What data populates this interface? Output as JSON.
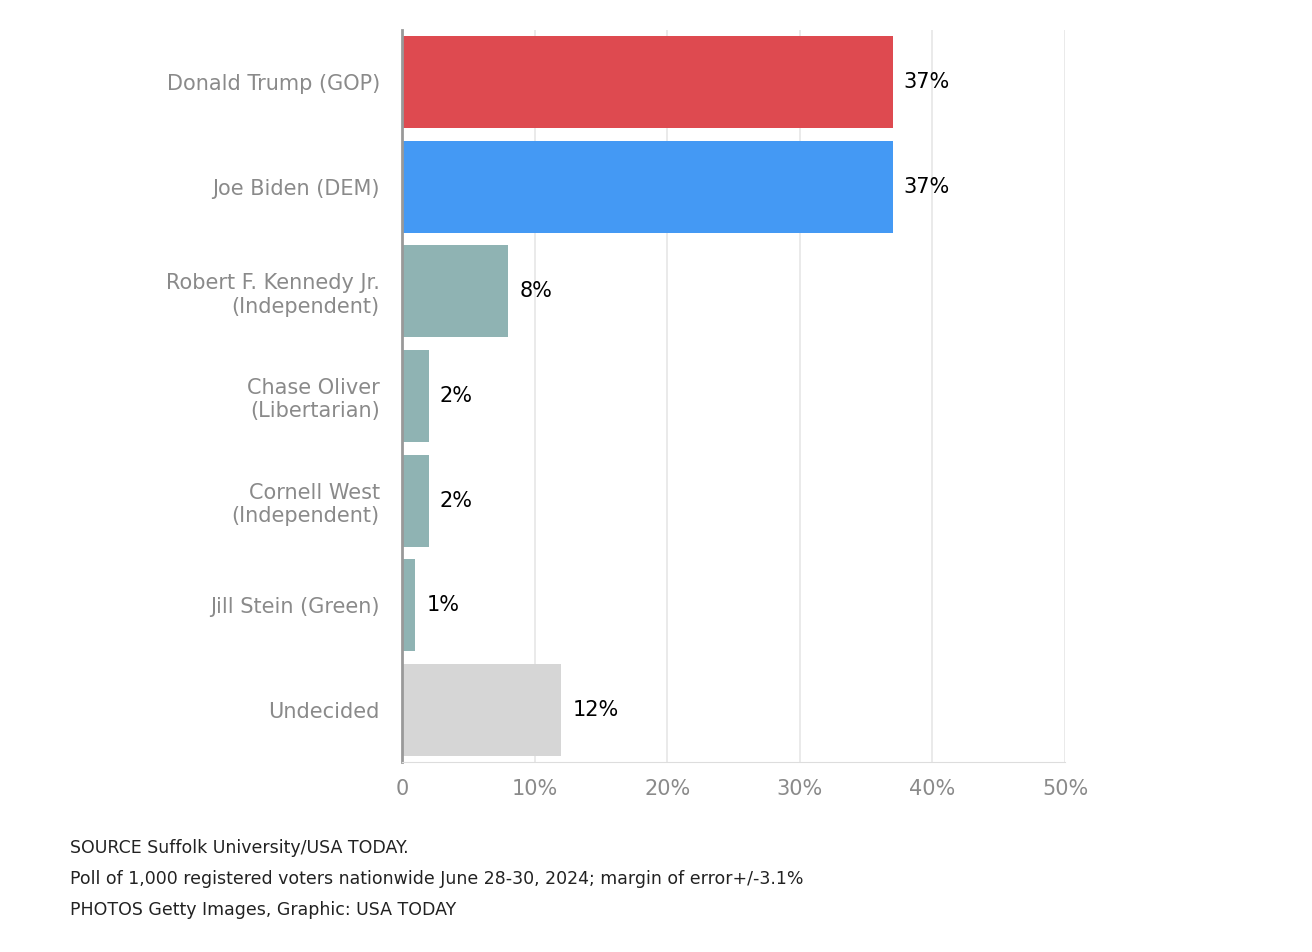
{
  "chart_data": {
    "type": "bar",
    "orientation": "horizontal",
    "categories": [
      "Donald Trump (GOP)",
      "Joe Biden (DEM)",
      "Robert F. Kennedy Jr.\n(Independent)",
      "Chase Oliver\n(Libertarian)",
      "Cornell West\n(Independent)",
      "Jill Stein (Green)",
      "Undecided"
    ],
    "values": [
      37,
      37,
      8,
      2,
      2,
      1,
      12
    ],
    "value_labels": [
      "37%",
      "37%",
      "8%",
      "2%",
      "2%",
      "1%",
      "12%"
    ],
    "colors": [
      "#de4a50",
      "#4499f4",
      "#8fb3b3",
      "#8fb3b3",
      "#8fb3b3",
      "#8fb3b3",
      "#d6d6d6"
    ],
    "data_labels": true,
    "xlim": [
      0,
      50
    ],
    "xticks": [
      0,
      {
        "value": 10,
        "label": "10%"
      },
      {
        "value": 20,
        "label": "20%"
      },
      {
        "value": 30,
        "label": "30%"
      },
      {
        "value": 40,
        "label": "40%"
      },
      {
        "value": 50,
        "label": "50%"
      }
    ],
    "grid": true,
    "notes": [
      "SOURCE Suffolk University/USA TODAY.",
      "Poll of 1,000 registered voters nationwide June 28-30, 2024; margin of error+/-3.1%",
      "PHOTOS Getty Images, Graphic: USA TODAY"
    ]
  }
}
